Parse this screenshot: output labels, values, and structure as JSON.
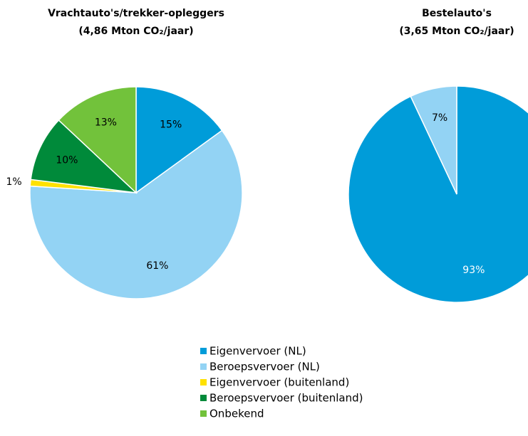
{
  "legend": {
    "labels": [
      "Eigenvervoer (NL)",
      "Beroepsvervoer (NL)",
      "Eigenvervoer (buitenland)",
      "Beroepsvervoer (buitenland)",
      "Onbekend"
    ],
    "colors": [
      "#009cd9",
      "#93d3f4",
      "#ffe100",
      "#008a3a",
      "#72c23b"
    ]
  },
  "chart_data": [
    {
      "type": "pie",
      "title": "Vrachtauto's/trekker-opleggers",
      "subtitle": "(4,86 Mton CO₂/jaar)",
      "values": [
        15,
        61,
        1,
        10,
        13
      ],
      "value_labels": [
        "15%",
        "61%",
        "1%",
        "10%",
        "13%"
      ]
    },
    {
      "type": "pie",
      "title": "Bestelauto's",
      "subtitle": "(3,65 Mton CO₂/jaar)",
      "values": [
        93,
        7
      ],
      "value_labels": [
        "93%",
        "7%"
      ]
    }
  ]
}
